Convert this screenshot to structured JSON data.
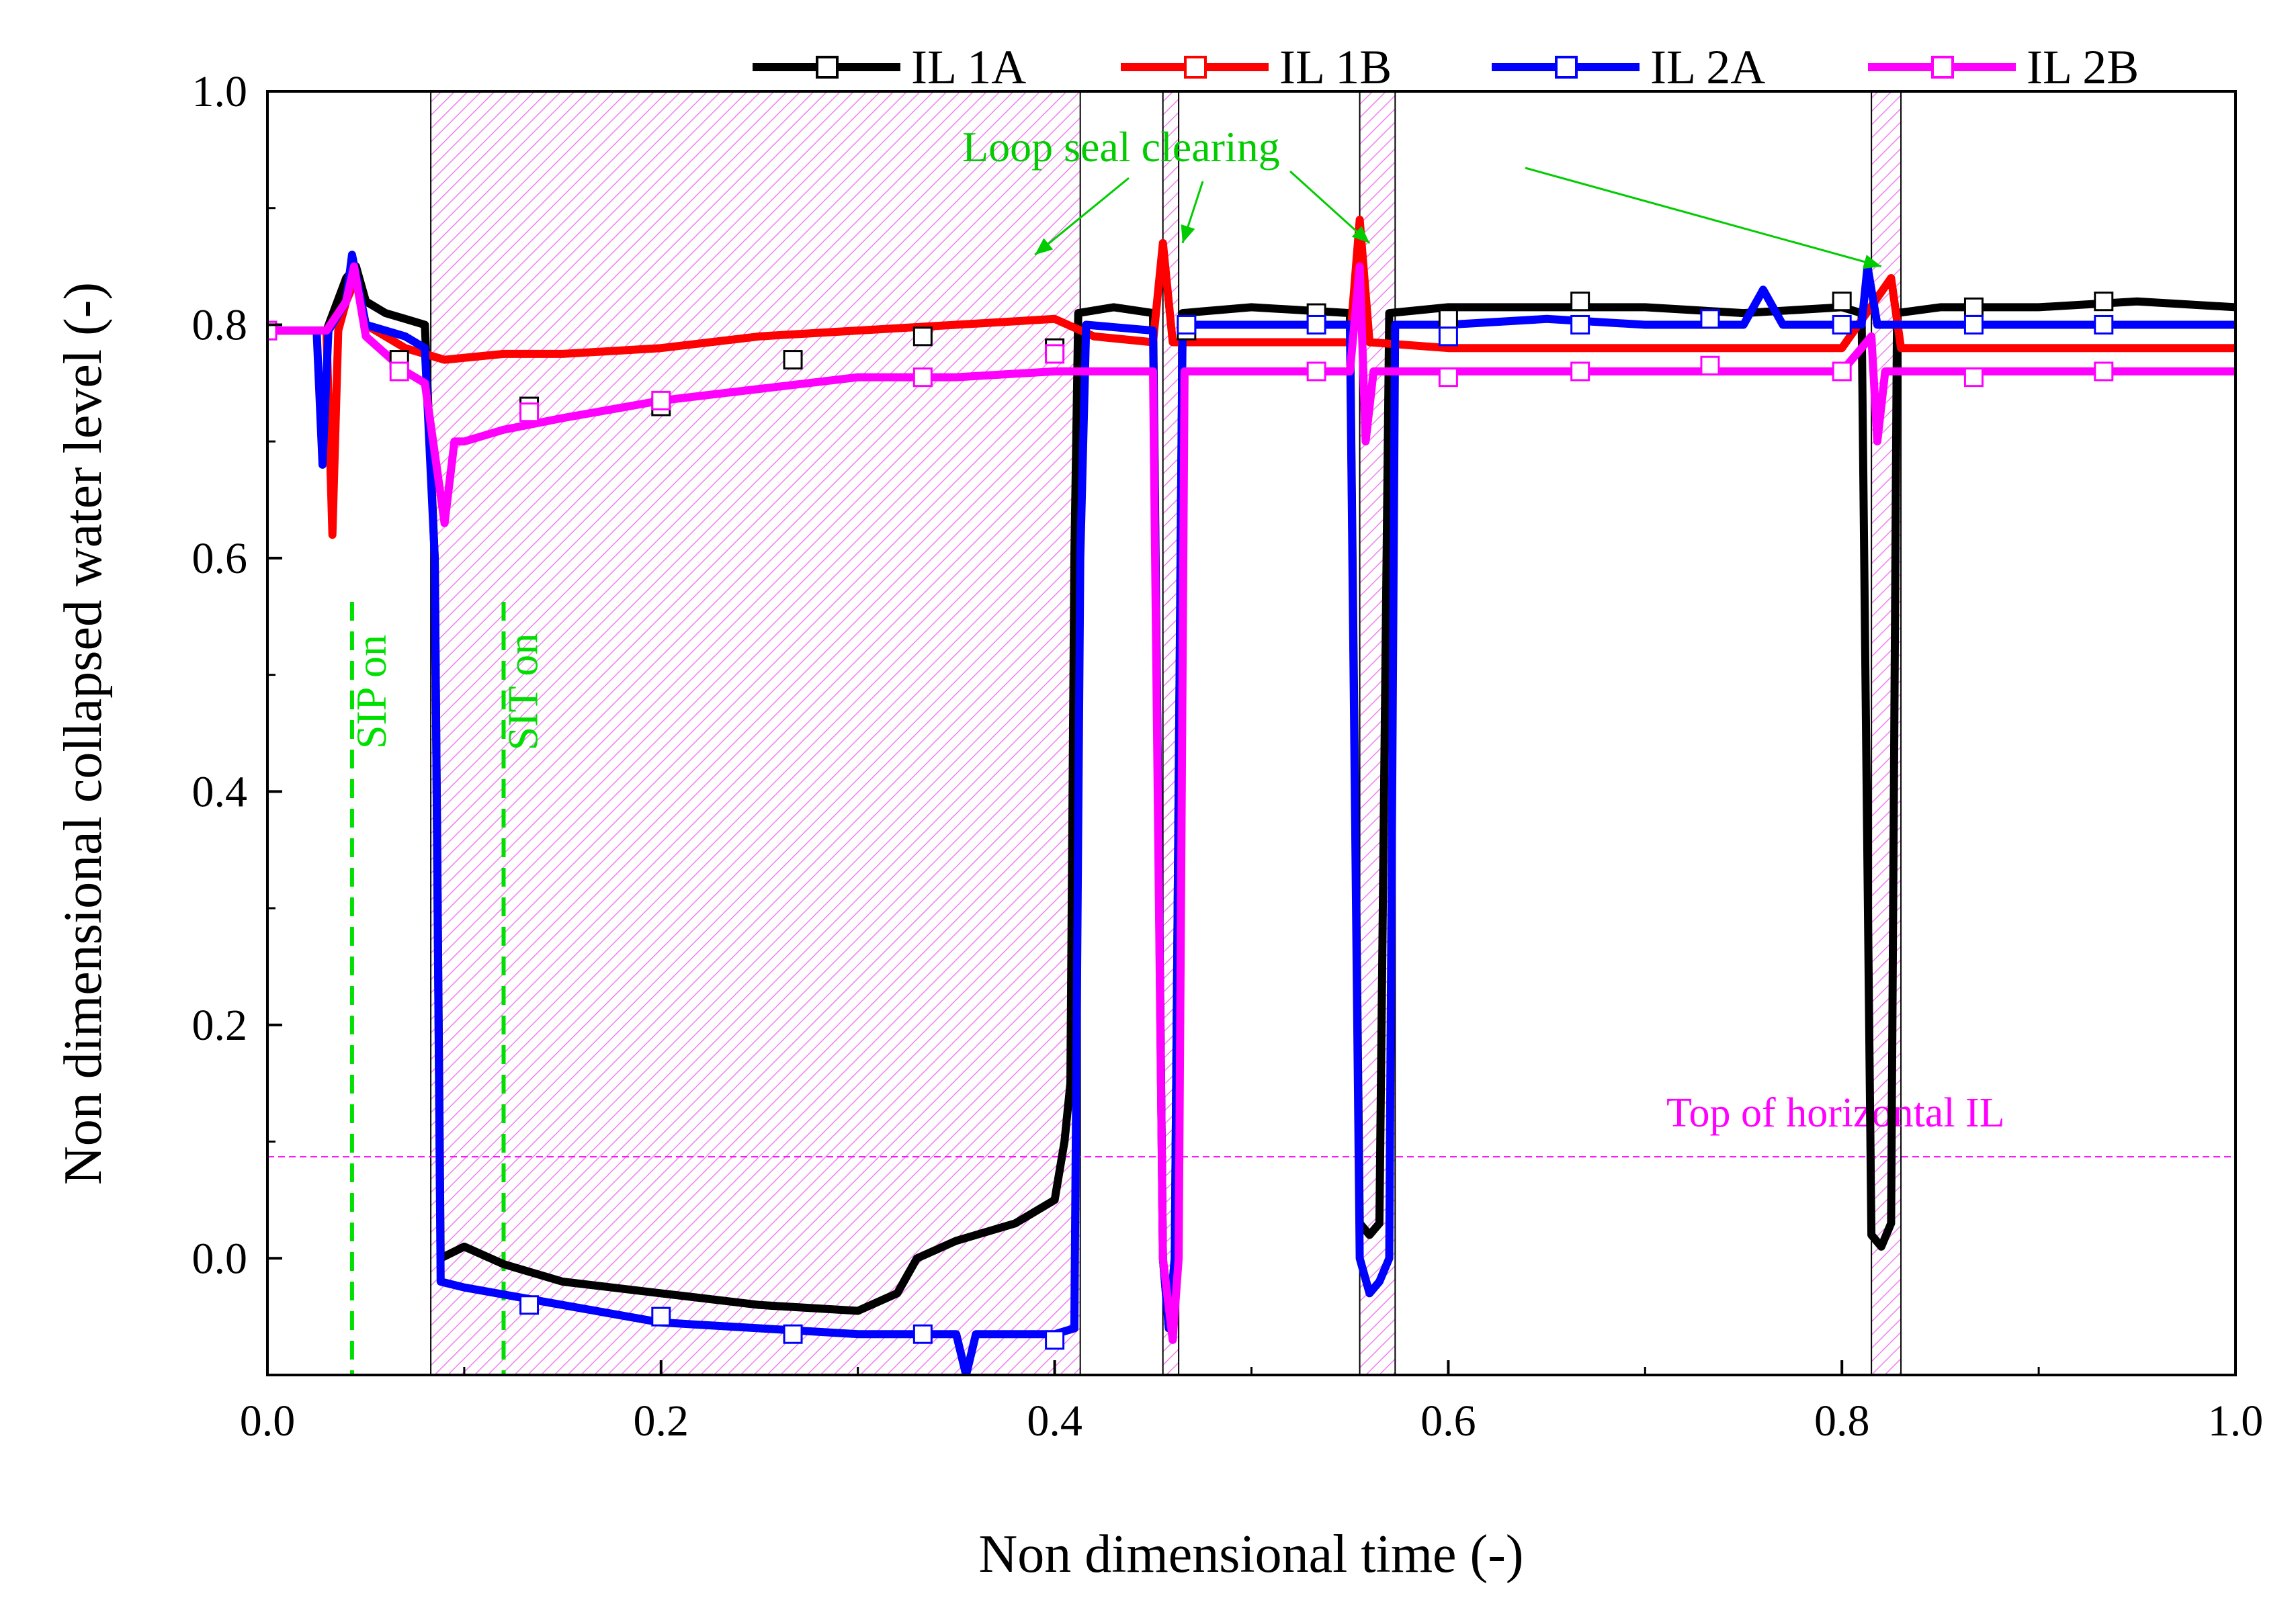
{
  "chart_data": {
    "type": "line",
    "xlabel": "Non dimensional time (-)",
    "ylabel": "Non dimensional collapsed water level (-)",
    "xlim": [
      0.0,
      1.0
    ],
    "ylim": [
      -0.1,
      1.0
    ],
    "x_ticks": [
      0.0,
      0.2,
      0.4,
      0.6,
      0.8,
      1.0
    ],
    "x_tick_labels": [
      "0.0",
      "0.2",
      "0.4",
      "0.6",
      "0.8",
      "1.0"
    ],
    "y_ticks": [
      0.0,
      0.2,
      0.4,
      0.6,
      0.8,
      1.0
    ],
    "y_tick_labels": [
      "0.0",
      "0.2",
      "0.4",
      "0.6",
      "0.8",
      "1.0"
    ],
    "legend_position": "top",
    "series": [
      {
        "name": "IL 1A",
        "color": "#000000",
        "points": [
          [
            0.0,
            0.795
          ],
          [
            0.03,
            0.795
          ],
          [
            0.04,
            0.84
          ],
          [
            0.045,
            0.85
          ],
          [
            0.05,
            0.82
          ],
          [
            0.06,
            0.81
          ],
          [
            0.07,
            0.805
          ],
          [
            0.08,
            0.8
          ],
          [
            0.085,
            0.6
          ],
          [
            0.088,
            0.0
          ],
          [
            0.1,
            0.01
          ],
          [
            0.12,
            -0.005
          ],
          [
            0.15,
            -0.02
          ],
          [
            0.2,
            -0.03
          ],
          [
            0.25,
            -0.04
          ],
          [
            0.3,
            -0.045
          ],
          [
            0.32,
            -0.03
          ],
          [
            0.33,
            0.0
          ],
          [
            0.35,
            0.015
          ],
          [
            0.38,
            0.03
          ],
          [
            0.4,
            0.05
          ],
          [
            0.405,
            0.1
          ],
          [
            0.408,
            0.15
          ],
          [
            0.41,
            0.6
          ],
          [
            0.412,
            0.81
          ],
          [
            0.43,
            0.815
          ],
          [
            0.45,
            0.81
          ],
          [
            0.455,
            0.0
          ],
          [
            0.458,
            -0.06
          ],
          [
            0.461,
            0.0
          ],
          [
            0.465,
            0.81
          ],
          [
            0.5,
            0.815
          ],
          [
            0.55,
            0.81
          ],
          [
            0.555,
            0.03
          ],
          [
            0.56,
            0.02
          ],
          [
            0.565,
            0.03
          ],
          [
            0.57,
            0.81
          ],
          [
            0.6,
            0.815
          ],
          [
            0.65,
            0.815
          ],
          [
            0.7,
            0.815
          ],
          [
            0.75,
            0.81
          ],
          [
            0.8,
            0.815
          ],
          [
            0.81,
            0.81
          ],
          [
            0.815,
            0.02
          ],
          [
            0.82,
            0.01
          ],
          [
            0.825,
            0.03
          ],
          [
            0.828,
            0.81
          ],
          [
            0.85,
            0.815
          ],
          [
            0.9,
            0.815
          ],
          [
            0.95,
            0.82
          ],
          [
            1.0,
            0.815
          ]
        ],
        "markers": [
          [
            0.0,
            0.795
          ],
          [
            0.067,
            0.77
          ],
          [
            0.133,
            0.73
          ],
          [
            0.2,
            0.73
          ],
          [
            0.267,
            0.77
          ],
          [
            0.333,
            0.79
          ],
          [
            0.4,
            0.78
          ],
          [
            0.467,
            0.795
          ],
          [
            0.533,
            0.81
          ],
          [
            0.6,
            0.805
          ],
          [
            0.667,
            0.82
          ],
          [
            0.733,
            0.805
          ],
          [
            0.8,
            0.82
          ],
          [
            0.867,
            0.815
          ],
          [
            0.933,
            0.82
          ]
        ]
      },
      {
        "name": "IL 1B",
        "color": "#ff0000",
        "points": [
          [
            0.0,
            0.795
          ],
          [
            0.03,
            0.795
          ],
          [
            0.033,
            0.62
          ],
          [
            0.036,
            0.795
          ],
          [
            0.04,
            0.82
          ],
          [
            0.045,
            0.84
          ],
          [
            0.05,
            0.8
          ],
          [
            0.07,
            0.78
          ],
          [
            0.09,
            0.77
          ],
          [
            0.12,
            0.775
          ],
          [
            0.15,
            0.775
          ],
          [
            0.2,
            0.78
          ],
          [
            0.25,
            0.79
          ],
          [
            0.3,
            0.795
          ],
          [
            0.35,
            0.8
          ],
          [
            0.4,
            0.805
          ],
          [
            0.42,
            0.79
          ],
          [
            0.45,
            0.785
          ],
          [
            0.455,
            0.87
          ],
          [
            0.46,
            0.785
          ],
          [
            0.5,
            0.785
          ],
          [
            0.55,
            0.785
          ],
          [
            0.555,
            0.89
          ],
          [
            0.56,
            0.785
          ],
          [
            0.6,
            0.78
          ],
          [
            0.7,
            0.78
          ],
          [
            0.8,
            0.78
          ],
          [
            0.825,
            0.84
          ],
          [
            0.83,
            0.78
          ],
          [
            0.9,
            0.78
          ],
          [
            1.0,
            0.78
          ]
        ],
        "markers": []
      },
      {
        "name": "IL 2A",
        "color": "#0000ff",
        "points": [
          [
            0.0,
            0.795
          ],
          [
            0.025,
            0.795
          ],
          [
            0.028,
            0.68
          ],
          [
            0.031,
            0.795
          ],
          [
            0.04,
            0.82
          ],
          [
            0.043,
            0.86
          ],
          [
            0.05,
            0.8
          ],
          [
            0.07,
            0.79
          ],
          [
            0.08,
            0.78
          ],
          [
            0.085,
            0.6
          ],
          [
            0.088,
            -0.02
          ],
          [
            0.1,
            -0.025
          ],
          [
            0.15,
            -0.04
          ],
          [
            0.2,
            -0.055
          ],
          [
            0.25,
            -0.06
          ],
          [
            0.3,
            -0.065
          ],
          [
            0.35,
            -0.065
          ],
          [
            0.355,
            -0.1
          ],
          [
            0.36,
            -0.065
          ],
          [
            0.4,
            -0.065
          ],
          [
            0.41,
            -0.06
          ],
          [
            0.413,
            0.6
          ],
          [
            0.416,
            0.8
          ],
          [
            0.45,
            0.795
          ],
          [
            0.455,
            0.0
          ],
          [
            0.458,
            -0.06
          ],
          [
            0.461,
            0.0
          ],
          [
            0.465,
            0.8
          ],
          [
            0.5,
            0.8
          ],
          [
            0.55,
            0.8
          ],
          [
            0.555,
            0.0
          ],
          [
            0.56,
            -0.03
          ],
          [
            0.565,
            -0.02
          ],
          [
            0.57,
            0.0
          ],
          [
            0.573,
            0.8
          ],
          [
            0.6,
            0.8
          ],
          [
            0.65,
            0.805
          ],
          [
            0.7,
            0.8
          ],
          [
            0.75,
            0.8
          ],
          [
            0.76,
            0.83
          ],
          [
            0.77,
            0.8
          ],
          [
            0.81,
            0.8
          ],
          [
            0.813,
            0.85
          ],
          [
            0.818,
            0.8
          ],
          [
            0.85,
            0.8
          ],
          [
            0.9,
            0.8
          ],
          [
            0.95,
            0.8
          ],
          [
            1.0,
            0.8
          ]
        ],
        "markers": [
          [
            0.133,
            -0.04
          ],
          [
            0.2,
            -0.05
          ],
          [
            0.267,
            -0.065
          ],
          [
            0.333,
            -0.065
          ],
          [
            0.4,
            -0.07
          ],
          [
            0.467,
            0.8
          ],
          [
            0.533,
            0.8
          ],
          [
            0.6,
            0.79
          ],
          [
            0.667,
            0.8
          ],
          [
            0.733,
            0.805
          ],
          [
            0.8,
            0.8
          ],
          [
            0.867,
            0.8
          ],
          [
            0.933,
            0.8
          ]
        ]
      },
      {
        "name": "IL 2B",
        "color": "#ff00ff",
        "points": [
          [
            0.0,
            0.795
          ],
          [
            0.03,
            0.795
          ],
          [
            0.04,
            0.82
          ],
          [
            0.044,
            0.85
          ],
          [
            0.05,
            0.79
          ],
          [
            0.07,
            0.76
          ],
          [
            0.08,
            0.75
          ],
          [
            0.085,
            0.69
          ],
          [
            0.09,
            0.63
          ],
          [
            0.095,
            0.7
          ],
          [
            0.1,
            0.7
          ],
          [
            0.12,
            0.71
          ],
          [
            0.15,
            0.72
          ],
          [
            0.2,
            0.735
          ],
          [
            0.25,
            0.745
          ],
          [
            0.3,
            0.755
          ],
          [
            0.35,
            0.755
          ],
          [
            0.4,
            0.76
          ],
          [
            0.45,
            0.76
          ],
          [
            0.455,
            0.0
          ],
          [
            0.46,
            -0.07
          ],
          [
            0.463,
            0.0
          ],
          [
            0.466,
            0.76
          ],
          [
            0.5,
            0.76
          ],
          [
            0.55,
            0.76
          ],
          [
            0.555,
            0.85
          ],
          [
            0.558,
            0.7
          ],
          [
            0.562,
            0.76
          ],
          [
            0.6,
            0.76
          ],
          [
            0.7,
            0.76
          ],
          [
            0.8,
            0.76
          ],
          [
            0.815,
            0.79
          ],
          [
            0.818,
            0.7
          ],
          [
            0.822,
            0.76
          ],
          [
            0.9,
            0.76
          ],
          [
            1.0,
            0.76
          ]
        ],
        "markers": [
          [
            0.0,
            0.795
          ],
          [
            0.067,
            0.76
          ],
          [
            0.133,
            0.725
          ],
          [
            0.2,
            0.735
          ],
          [
            0.333,
            0.755
          ],
          [
            0.4,
            0.775
          ],
          [
            0.533,
            0.76
          ],
          [
            0.6,
            0.755
          ],
          [
            0.667,
            0.76
          ],
          [
            0.733,
            0.765
          ],
          [
            0.8,
            0.76
          ],
          [
            0.867,
            0.755
          ],
          [
            0.933,
            0.76
          ]
        ]
      }
    ],
    "shaded_regions": [
      {
        "x0": 0.083,
        "x1": 0.413
      },
      {
        "x0": 0.455,
        "x1": 0.463
      },
      {
        "x0": 0.555,
        "x1": 0.573
      },
      {
        "x0": 0.815,
        "x1": 0.83
      }
    ],
    "vlines": [
      {
        "x": 0.043,
        "label": "SIP on"
      },
      {
        "x": 0.12,
        "label": "SIT on"
      }
    ],
    "hline": {
      "y": 0.087,
      "label": "Top of horizontal IL"
    },
    "annotation": {
      "text": "Loop seal clearing",
      "targets": [
        [
          0.39,
          0.86
        ],
        [
          0.465,
          0.87
        ],
        [
          0.56,
          0.87
        ],
        [
          0.82,
          0.85
        ]
      ]
    },
    "colors": {
      "shade": "#ff00ff",
      "sip_sit": "#00e000",
      "annotation": "#00cc00",
      "hline": "#ff00ff",
      "frame": "#000000"
    }
  }
}
